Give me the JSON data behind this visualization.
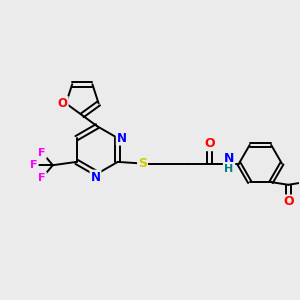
{
  "bg_color": "#ebebeb",
  "bond_color": "#000000",
  "atom_colors": {
    "N": "#0000ff",
    "O": "#ff0000",
    "S": "#cccc00",
    "F": "#ff00ff",
    "H": "#008080"
  },
  "figsize": [
    3.0,
    3.0
  ],
  "dpi": 100,
  "xlim": [
    0,
    9
  ],
  "ylim": [
    0,
    9
  ]
}
